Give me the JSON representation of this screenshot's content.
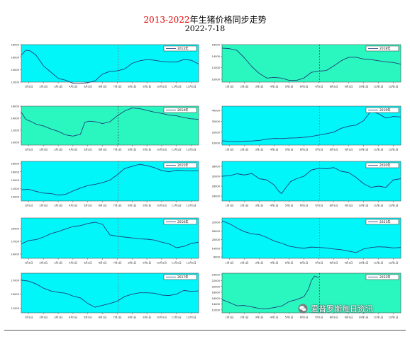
{
  "title": {
    "years": "2013-2022",
    "text": "年生猪价格同步走势"
  },
  "subtitle": "2022-7-18",
  "watermark": {
    "text": "爱普罗斯每日资讯",
    "icon": "wechat-icon"
  },
  "colors": {
    "panel_cyan": "#00f6f9",
    "panel_green": "#2af7bf",
    "line": "#1f3f7a",
    "marker": "#777777",
    "title_year": "#e00000"
  },
  "months": [
    "1月1日",
    "2月1日",
    "3月1日",
    "4月1日",
    "5月1日",
    "6月1日",
    "7月1日",
    "8月1日",
    "9月1日",
    "10月1日",
    "11月1日",
    "12月1日"
  ],
  "marker_date": "7月18日",
  "chart_data": [
    {
      "type": "line",
      "legend": "2013年",
      "bg": "cyan",
      "yticks": [
        12000,
        14000,
        16000,
        18000
      ],
      "ylim": [
        12000,
        18000
      ],
      "x": [
        0,
        0.3,
        0.6,
        1,
        1.5,
        2,
        2.5,
        3,
        3.5,
        4,
        4.5,
        5,
        5.5,
        6,
        6.5,
        7,
        7.5,
        8,
        8.5,
        9,
        9.5,
        10,
        10.5,
        11,
        11.5,
        12
      ],
      "y": [
        16300,
        17100,
        17000,
        16300,
        14600,
        13600,
        12600,
        12300,
        11800,
        11800,
        11900,
        12200,
        13300,
        13700,
        13800,
        14100,
        15000,
        15400,
        15600,
        15500,
        15300,
        15200,
        15200,
        15600,
        15500,
        14900
      ]
    },
    {
      "type": "line",
      "legend": "2018年",
      "bg": "green",
      "yticks": [
        10000,
        12000,
        14000,
        16000
      ],
      "ylim": [
        9500,
        16000
      ],
      "x": [
        0,
        0.5,
        1,
        1.5,
        2,
        2.5,
        3,
        3.5,
        4,
        4.5,
        5,
        5.5,
        6,
        6.5,
        7,
        7.5,
        8,
        8.5,
        9,
        9.5,
        10,
        10.5,
        11,
        11.5,
        12
      ],
      "y": [
        15400,
        15300,
        15000,
        13700,
        12200,
        11000,
        10200,
        10300,
        10200,
        9800,
        9800,
        10200,
        11200,
        11400,
        11500,
        12300,
        13200,
        13800,
        13800,
        13500,
        13400,
        13200,
        13000,
        12900,
        12600
      ]
    },
    {
      "type": "line",
      "legend": "2014年",
      "bg": "green",
      "yticks": [
        10000,
        12000,
        14000,
        16000
      ],
      "ylim": [
        9500,
        16000
      ],
      "x": [
        0,
        0.3,
        0.6,
        1,
        1.5,
        2,
        2.5,
        3,
        3.5,
        4,
        4.3,
        4.6,
        5,
        5.5,
        6,
        6.5,
        7,
        7.5,
        8,
        8.5,
        9,
        9.5,
        10,
        10.5,
        11,
        11.5,
        12
      ],
      "y": [
        15000,
        13800,
        13500,
        13000,
        12700,
        12200,
        11800,
        11200,
        11000,
        11300,
        13300,
        13500,
        13400,
        13100,
        13400,
        14400,
        15200,
        15700,
        15600,
        15300,
        15000,
        14800,
        14500,
        14400,
        14100,
        13900,
        13800
      ]
    },
    {
      "type": "line",
      "legend": "2019年",
      "bg": "cyan",
      "yticks": [
        10000,
        20000,
        30000,
        40000
      ],
      "ylim": [
        8000,
        44000
      ],
      "x": [
        0,
        0.5,
        1,
        1.5,
        2,
        2.5,
        3,
        3.5,
        4,
        4.5,
        5,
        5.5,
        6,
        6.5,
        7,
        7.5,
        8,
        8.5,
        9,
        9.5,
        10,
        10.5,
        11,
        11.5,
        12
      ],
      "y": [
        12000,
        11500,
        11200,
        11600,
        11800,
        12300,
        13500,
        14200,
        14000,
        14500,
        14700,
        15200,
        16000,
        17300,
        18500,
        20000,
        23500,
        25500,
        26500,
        30500,
        39500,
        37000,
        33000,
        34500,
        34000
      ]
    },
    {
      "type": "line",
      "legend": "2015年",
      "bg": "cyan",
      "yticks": [
        10000,
        12000,
        14000,
        16000,
        18000
      ],
      "ylim": [
        9000,
        18500
      ],
      "x": [
        0,
        0.5,
        1,
        1.5,
        2,
        2.5,
        3,
        3.5,
        4,
        4.5,
        5,
        5.5,
        6,
        6.5,
        7,
        7.5,
        8,
        8.5,
        9,
        9.5,
        10,
        10.5,
        11,
        11.5,
        12
      ],
      "y": [
        11700,
        11800,
        11300,
        10900,
        10800,
        10400,
        10600,
        11400,
        12100,
        12700,
        13000,
        13400,
        14000,
        15300,
        16800,
        17300,
        17800,
        17500,
        17000,
        16300,
        16000,
        16400,
        16300,
        16200,
        16300
      ]
    },
    {
      "type": "line",
      "legend": "2020年",
      "bg": "cyan",
      "yticks": [
        24000,
        28000,
        32000,
        36000
      ],
      "ylim": [
        22000,
        38000
      ],
      "x": [
        0,
        0.5,
        1,
        1.5,
        2,
        2.5,
        3,
        3.5,
        3.8,
        4,
        4.3,
        4.6,
        5,
        5.5,
        6,
        6.5,
        7,
        7.5,
        8,
        8.5,
        9,
        9.5,
        10,
        10.5,
        11,
        11.5,
        12
      ],
      "y": [
        32000,
        32200,
        33000,
        32500,
        33100,
        31000,
        30500,
        28500,
        26000,
        25000,
        27500,
        29800,
        31000,
        32000,
        34500,
        35200,
        35000,
        35500,
        34000,
        33500,
        31500,
        29000,
        27500,
        28000,
        27500,
        30500,
        31000
      ]
    },
    {
      "type": "line",
      "legend": "2016年",
      "bg": "cyan",
      "yticks": [
        14000,
        17000,
        20000
      ],
      "ylim": [
        13000,
        22500
      ],
      "x": [
        0,
        0.5,
        1,
        1.5,
        2,
        2.5,
        3,
        3.5,
        4,
        4.5,
        5,
        5.5,
        6,
        6.5,
        7,
        7.5,
        8,
        8.5,
        9,
        9.5,
        10,
        10.5,
        11,
        11.5,
        12
      ],
      "y": [
        16400,
        17200,
        17400,
        18000,
        18800,
        19300,
        19900,
        20500,
        20700,
        21200,
        21500,
        21000,
        18500,
        18200,
        18000,
        17800,
        17600,
        17500,
        17300,
        16800,
        16400,
        15500,
        15800,
        16500,
        16800
      ]
    },
    {
      "type": "line",
      "legend": "2021年",
      "bg": "cyan",
      "yticks": [
        8000,
        14000,
        20000,
        26000,
        32000
      ],
      "ylim": [
        7000,
        35000
      ],
      "x": [
        0,
        0.5,
        1,
        1.5,
        2,
        2.5,
        3,
        3.5,
        4,
        4.5,
        5,
        5.5,
        6,
        6.5,
        7,
        7.5,
        8,
        8.5,
        9,
        9.5,
        10,
        10.5,
        11,
        11.5,
        12
      ],
      "y": [
        33000,
        31000,
        28000,
        25500,
        24000,
        23500,
        21500,
        19000,
        17500,
        15500,
        14500,
        14000,
        14800,
        14500,
        14200,
        13500,
        13000,
        12000,
        11000,
        13500,
        14500,
        15000,
        14800,
        14200,
        14500
      ]
    },
    {
      "type": "line",
      "legend": "2017年",
      "bg": "cyan",
      "yticks": [
        11000,
        14000,
        17000
      ],
      "ylim": [
        10000,
        18500
      ],
      "x": [
        0,
        0.5,
        1,
        1.5,
        2,
        2.5,
        3,
        3.5,
        4,
        4.5,
        5,
        5.5,
        6,
        6.5,
        7,
        7.5,
        8,
        8.5,
        9,
        9.5,
        10,
        10.5,
        11,
        11.5,
        12
      ],
      "y": [
        17000,
        16800,
        16200,
        15300,
        14700,
        14400,
        14200,
        13600,
        13200,
        12000,
        11200,
        11600,
        12000,
        12500,
        13500,
        14000,
        14300,
        14300,
        14200,
        13800,
        13700,
        14000,
        14800,
        14600,
        14700
      ]
    },
    {
      "type": "line",
      "legend": "2022年",
      "bg": "green",
      "yticks": [
        12000,
        14000,
        16000,
        18000,
        20000,
        22000,
        24000
      ],
      "ylim": [
        11000,
        24500
      ],
      "x": [
        0,
        0.5,
        1,
        1.5,
        2,
        2.5,
        3,
        3.5,
        4,
        4.5,
        5,
        5.5,
        5.8,
        6,
        6.2,
        6.5
      ],
      "y": [
        15500,
        14500,
        13400,
        13500,
        13000,
        12500,
        12400,
        12800,
        13300,
        14800,
        15500,
        16500,
        19000,
        22000,
        23500,
        23000
      ]
    }
  ]
}
